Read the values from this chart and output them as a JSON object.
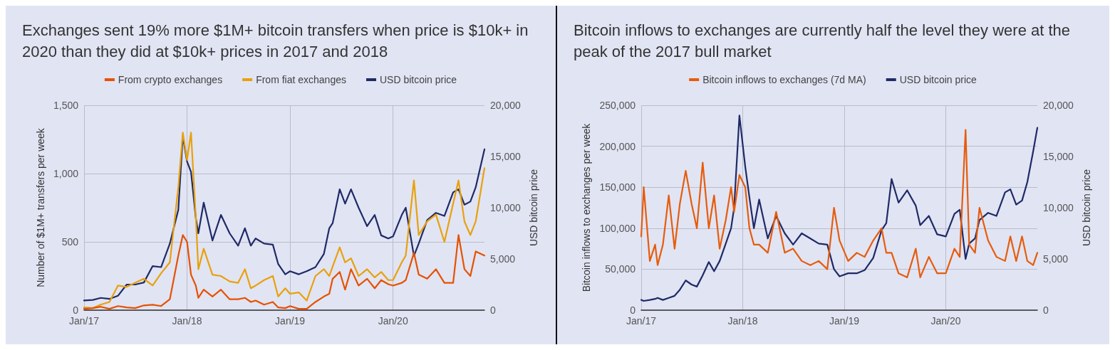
{
  "chart_data": [
    {
      "type": "line",
      "title": "Exchanges sent 19% more $1M+ bitcoin transfers when price is $10k+ in 2020 than they did at $10k+ prices in 2017 and 2018",
      "ylabel": "Number of $1M+ transfers per week",
      "y2label": "USD bitcoin price",
      "x": [
        "2017-01-01",
        "2017-02-01",
        "2017-03-01",
        "2017-04-01",
        "2017-05-01",
        "2017-06-01",
        "2017-07-01",
        "2017-08-01",
        "2017-09-01",
        "2017-10-01",
        "2017-11-01",
        "2017-12-01",
        "2017-12-17",
        "2018-01-01",
        "2018-01-15",
        "2018-02-01",
        "2018-02-10",
        "2018-03-01",
        "2018-04-01",
        "2018-05-01",
        "2018-06-01",
        "2018-07-01",
        "2018-07-25",
        "2018-08-15",
        "2018-09-01",
        "2018-10-01",
        "2018-11-01",
        "2018-11-20",
        "2018-12-15",
        "2019-01-01",
        "2019-02-01",
        "2019-03-01",
        "2019-04-01",
        "2019-05-01",
        "2019-05-20",
        "2019-06-01",
        "2019-06-26",
        "2019-07-15",
        "2019-08-05",
        "2019-09-01",
        "2019-10-01",
        "2019-10-28",
        "2019-11-20",
        "2019-12-15",
        "2020-01-01",
        "2020-02-01",
        "2020-02-15",
        "2020-03-15",
        "2020-04-01",
        "2020-05-01",
        "2020-06-01",
        "2020-07-01",
        "2020-08-01",
        "2020-08-20",
        "2020-09-10",
        "2020-10-01",
        "2020-10-20",
        "2020-11-20"
      ],
      "series": [
        {
          "name": "From crypto exchanges",
          "color": "#e65100",
          "values": [
            10,
            15,
            25,
            10,
            30,
            20,
            15,
            35,
            40,
            30,
            80,
            400,
            550,
            500,
            260,
            180,
            90,
            150,
            100,
            150,
            80,
            80,
            90,
            60,
            70,
            40,
            60,
            20,
            15,
            30,
            10,
            10,
            60,
            100,
            120,
            230,
            280,
            150,
            300,
            180,
            230,
            160,
            220,
            190,
            180,
            200,
            220,
            420,
            260,
            230,
            300,
            200,
            200,
            550,
            300,
            250,
            430,
            400
          ]
        },
        {
          "name": "From fiat exchanges",
          "color": "#e8a10c",
          "values": [
            20,
            15,
            40,
            60,
            180,
            170,
            200,
            230,
            180,
            270,
            350,
            900,
            1300,
            1100,
            1300,
            680,
            300,
            450,
            260,
            250,
            210,
            200,
            300,
            160,
            180,
            220,
            250,
            100,
            160,
            120,
            130,
            70,
            250,
            300,
            250,
            320,
            460,
            350,
            380,
            250,
            300,
            240,
            280,
            220,
            220,
            350,
            400,
            950,
            550,
            650,
            700,
            500,
            780,
            950,
            650,
            550,
            650,
            1040
          ]
        },
        {
          "name": "USD bitcoin price",
          "color": "#1f2a66",
          "axis": "y2",
          "values": [
            950,
            1000,
            1200,
            1100,
            1400,
            2500,
            2500,
            2700,
            4300,
            4200,
            6500,
            9800,
            17000,
            14500,
            13500,
            9000,
            7500,
            10500,
            6800,
            9300,
            7500,
            6300,
            8000,
            6300,
            7000,
            6500,
            6400,
            4500,
            3500,
            3800,
            3500,
            3800,
            4200,
            5500,
            8000,
            8500,
            11800,
            10400,
            11800,
            10000,
            8200,
            9300,
            7300,
            7000,
            7200,
            9300,
            10000,
            5300,
            6500,
            8800,
            9500,
            9200,
            11500,
            11800,
            10300,
            10600,
            12000,
            15700
          ]
        }
      ],
      "xlim": [
        "2017-01-01",
        "2020-11-20"
      ],
      "xticks": [
        {
          "value": "2017-01-01",
          "label": "Jan/17"
        },
        {
          "value": "2018-01-01",
          "label": "Jan/18"
        },
        {
          "value": "2019-01-01",
          "label": "Jan/19"
        },
        {
          "value": "2020-01-01",
          "label": "Jan/20"
        }
      ],
      "ylim": [
        0,
        1500
      ],
      "yticks": [
        {
          "value": 0,
          "label": "0"
        },
        500,
        {
          "value": 1000,
          "label": "1,000"
        },
        {
          "value": 1500,
          "label": "1,500"
        }
      ],
      "y2lim": [
        0,
        20000
      ],
      "y2ticks": [
        {
          "value": 0,
          "label": "0"
        },
        {
          "value": 5000,
          "label": "5,000"
        },
        {
          "value": 10000,
          "label": "10,000"
        },
        {
          "value": 15000,
          "label": "15,000"
        },
        {
          "value": 20000,
          "label": "20,000"
        }
      ],
      "grid": true,
      "legend": "top",
      "marker": "none",
      "line_style": "solid"
    },
    {
      "type": "line",
      "title": "Bitcoin inflows to exchanges are currently half the level they were at the peak of the 2017 bull market",
      "ylabel": "Bitcoin inflows to exchanges per week",
      "y2label": "USD bitcoin price",
      "x": [
        "2017-01-01",
        "2017-01-10",
        "2017-02-01",
        "2017-02-20",
        "2017-03-01",
        "2017-03-20",
        "2017-04-10",
        "2017-05-01",
        "2017-05-20",
        "2017-06-10",
        "2017-07-01",
        "2017-07-20",
        "2017-08-10",
        "2017-09-01",
        "2017-09-20",
        "2017-10-10",
        "2017-11-01",
        "2017-11-20",
        "2017-12-01",
        "2017-12-20",
        "2018-01-10",
        "2018-01-25",
        "2018-02-10",
        "2018-03-01",
        "2018-04-01",
        "2018-05-01",
        "2018-06-01",
        "2018-07-01",
        "2018-08-01",
        "2018-09-01",
        "2018-10-01",
        "2018-11-01",
        "2018-11-25",
        "2018-12-15",
        "2019-01-15",
        "2019-02-15",
        "2019-03-15",
        "2019-04-15",
        "2019-05-15",
        "2019-06-01",
        "2019-06-20",
        "2019-07-15",
        "2019-08-15",
        "2019-09-15",
        "2019-10-01",
        "2019-11-01",
        "2019-12-01",
        "2020-01-01",
        "2020-02-01",
        "2020-02-20",
        "2020-03-12",
        "2020-03-25",
        "2020-04-15",
        "2020-05-01",
        "2020-06-01",
        "2020-07-01",
        "2020-08-01",
        "2020-08-20",
        "2020-09-10",
        "2020-10-01",
        "2020-10-20",
        "2020-11-10",
        "2020-11-25"
      ],
      "series": [
        {
          "name": "Bitcoin inflows to exchanges (7d MA)",
          "color": "#e65c0c",
          "values": [
            90000,
            150000,
            60000,
            80000,
            55000,
            80000,
            140000,
            75000,
            130000,
            170000,
            130000,
            100000,
            180000,
            100000,
            140000,
            75000,
            110000,
            150000,
            120000,
            165000,
            150000,
            100000,
            80000,
            80000,
            70000,
            120000,
            70000,
            75000,
            60000,
            55000,
            60000,
            50000,
            125000,
            85000,
            60000,
            70000,
            65000,
            85000,
            100000,
            70000,
            70000,
            45000,
            40000,
            75000,
            40000,
            65000,
            45000,
            45000,
            75000,
            65000,
            220000,
            80000,
            70000,
            125000,
            85000,
            65000,
            60000,
            90000,
            60000,
            90000,
            60000,
            55000,
            70000
          ]
        },
        {
          "name": "USD bitcoin price",
          "color": "#1f2a66",
          "axis": "y2",
          "values": [
            1000,
            900,
            1000,
            1100,
            1200,
            1000,
            1200,
            1400,
            2000,
            2900,
            2500,
            2300,
            3400,
            4700,
            3800,
            4800,
            6500,
            8000,
            10000,
            19000,
            14000,
            11000,
            8000,
            10800,
            7000,
            9200,
            7500,
            6400,
            7500,
            7000,
            6500,
            6400,
            4000,
            3300,
            3600,
            3600,
            3900,
            5100,
            7800,
            8500,
            12800,
            10500,
            11700,
            10200,
            8300,
            9200,
            7400,
            7200,
            9400,
            9800,
            5000,
            6500,
            7000,
            8800,
            9500,
            9200,
            11500,
            11800,
            10300,
            10700,
            12500,
            15500,
            17800
          ]
        }
      ],
      "xlim": [
        "2017-01-01",
        "2020-11-25"
      ],
      "xticks": [
        {
          "value": "2017-01-01",
          "label": "Jan/17"
        },
        {
          "value": "2018-01-01",
          "label": "Jan/18"
        },
        {
          "value": "2019-01-01",
          "label": "Jan/19"
        },
        {
          "value": "2020-01-01",
          "label": "Jan/20"
        }
      ],
      "ylim": [
        0,
        250000
      ],
      "yticks": [
        {
          "value": 0,
          "label": "0"
        },
        {
          "value": 50000,
          "label": "50,000"
        },
        {
          "value": 100000,
          "label": "100,000"
        },
        {
          "value": 150000,
          "label": "150,000"
        },
        {
          "value": 200000,
          "label": "200,000"
        },
        {
          "value": 250000,
          "label": "250,000"
        }
      ],
      "y2lim": [
        0,
        20000
      ],
      "y2ticks": [
        0,
        {
          "value": 5000,
          "label": "5,000"
        },
        {
          "value": 10000,
          "label": "10,000"
        },
        {
          "value": 15000,
          "label": "15,000"
        },
        {
          "value": 20000,
          "label": "20,000"
        }
      ],
      "grid": true,
      "legend": "top",
      "marker": "none",
      "line_style": "solid"
    }
  ]
}
